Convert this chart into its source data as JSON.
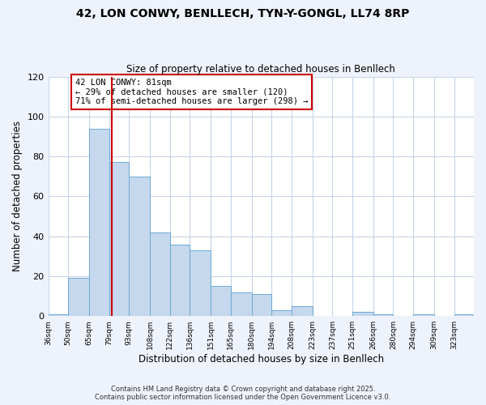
{
  "title_line1": "42, LON CONWY, BENLLECH, TYN-Y-GONGL, LL74 8RP",
  "title_line2": "Size of property relative to detached houses in Benllech",
  "xlabel": "Distribution of detached houses by size in Benllech",
  "ylabel": "Number of detached properties",
  "bin_labels": [
    "36sqm",
    "50sqm",
    "65sqm",
    "79sqm",
    "93sqm",
    "108sqm",
    "122sqm",
    "136sqm",
    "151sqm",
    "165sqm",
    "180sqm",
    "194sqm",
    "208sqm",
    "223sqm",
    "237sqm",
    "251sqm",
    "266sqm",
    "280sqm",
    "294sqm",
    "309sqm",
    "323sqm"
  ],
  "bin_edges": [
    36,
    50,
    65,
    79,
    93,
    108,
    122,
    136,
    151,
    165,
    180,
    194,
    208,
    223,
    237,
    251,
    266,
    280,
    294,
    309,
    323,
    337
  ],
  "values": [
    1,
    19,
    94,
    77,
    70,
    42,
    36,
    33,
    15,
    12,
    11,
    3,
    5,
    0,
    0,
    2,
    1,
    0,
    1,
    0,
    1
  ],
  "bar_color": "#c5d8ed",
  "bar_edge_color": "#6aaad4",
  "vline_x": 81,
  "vline_color": "#cc0000",
  "annotation_text": "42 LON CONWY: 81sqm\n← 29% of detached houses are smaller (120)\n71% of semi-detached houses are larger (298) →",
  "annotation_box_color": "white",
  "annotation_box_edge": "#cc0000",
  "ylim": [
    0,
    120
  ],
  "yticks": [
    0,
    20,
    40,
    60,
    80,
    100,
    120
  ],
  "footer_line1": "Contains HM Land Registry data © Crown copyright and database right 2025.",
  "footer_line2": "Contains public sector information licensed under the Open Government Licence v3.0.",
  "background_color": "#eef2fa",
  "plot_bg_color": "#ffffff",
  "grid_color": "#c8d4e8"
}
